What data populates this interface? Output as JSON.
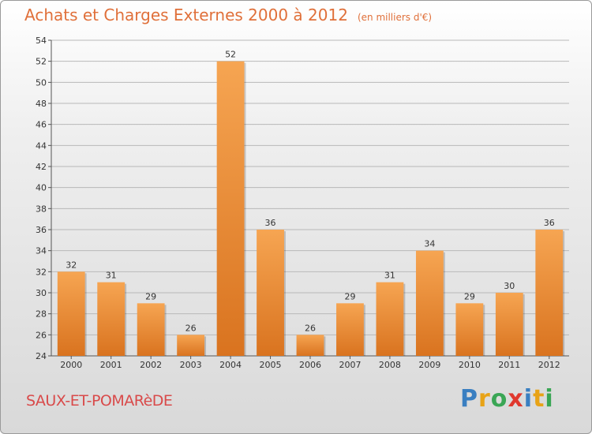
{
  "header": {
    "title": "Achats et Charges Externes 2000 à 2012",
    "unit": "(en milliers d'€)"
  },
  "footer": {
    "commune": "SAUX-ET-POMARèDE",
    "brand": "Proxiti",
    "brand_colors": [
      "#3a7fc1",
      "#e8a317",
      "#3aa655",
      "#e0382e",
      "#3a7fc1",
      "#e8a317",
      "#3aa655"
    ]
  },
  "colors": {
    "bar_light": "#f6a552",
    "bar_dark": "#d9731f",
    "label": "#333333",
    "title": "#e0703a",
    "commune": "#d94a4a"
  },
  "chart_data": {
    "type": "bar",
    "title": "Achats et Charges Externes 2000 à 2012",
    "subtitle": "(en milliers d'€)",
    "categories": [
      "2000",
      "2001",
      "2002",
      "2003",
      "2004",
      "2005",
      "2006",
      "2007",
      "2008",
      "2009",
      "2010",
      "2011",
      "2012"
    ],
    "values": [
      32,
      31,
      29,
      26,
      52,
      36,
      26,
      29,
      31,
      34,
      29,
      30,
      36
    ],
    "ylim": [
      24,
      54
    ],
    "yticks": [
      24,
      26,
      28,
      30,
      32,
      34,
      36,
      38,
      40,
      42,
      44,
      46,
      48,
      50,
      52,
      54
    ],
    "grid": true,
    "data_labels": true
  }
}
